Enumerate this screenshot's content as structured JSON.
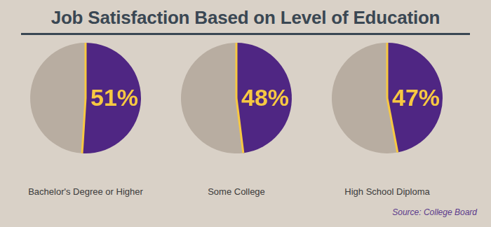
{
  "chart_data": {
    "type": "pie",
    "title": "Job Satisfaction Based on Level of Education",
    "categories": [
      "Bachelor's Degree or Higher",
      "Some College",
      "High School Diploma"
    ],
    "values": [
      51,
      48,
      47
    ],
    "value_labels": [
      "51%",
      "48%",
      "47%"
    ],
    "data_labels": true,
    "color": "#4f2683",
    "annotations": [
      "Source: College Board"
    ]
  }
}
